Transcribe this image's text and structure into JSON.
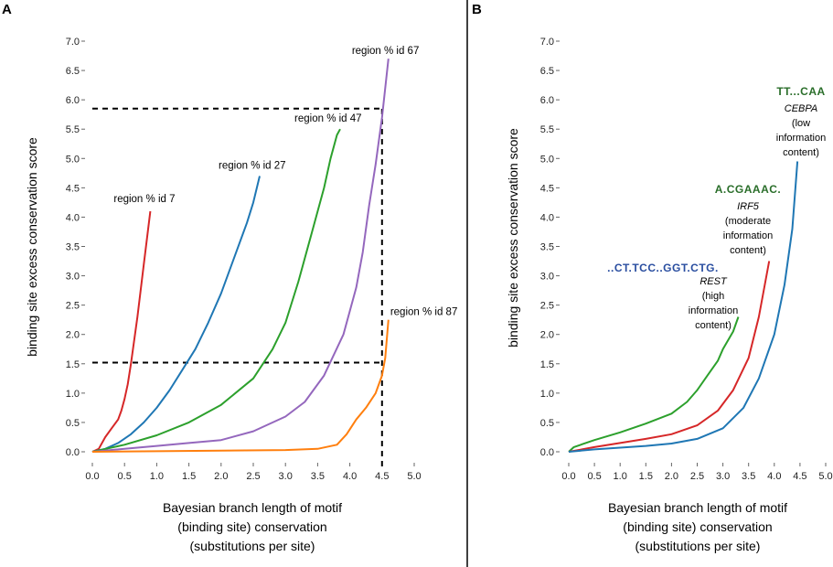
{
  "panels": [
    {
      "letter": "A",
      "ylabel": "binding site excess conservation score",
      "xlabel_lines": [
        "Bayesian branch length of motif",
        "(binding site) conservation",
        "(substitutions per site)"
      ],
      "xticks": [
        "0.0",
        "0.5",
        "1.0",
        "1.5",
        "2.0",
        "2.5",
        "3.0",
        "3.5",
        "4.0",
        "4.5",
        "5.0"
      ],
      "yticks": [
        "0.0",
        "0.5",
        "1.0",
        "1.5",
        "2.0",
        "2.5",
        "3.0",
        "3.5",
        "4.0",
        "4.5",
        "5.0",
        "5.5",
        "6.0",
        "6.5",
        "7.0"
      ]
    },
    {
      "letter": "B",
      "ylabel": "binding site excess conservation score",
      "xlabel_lines": [
        "Bayesian branch length of motif",
        "(binding site) conservation",
        "(substitutions per site)"
      ],
      "xticks": [
        "0.0",
        "0.5",
        "1.0",
        "1.5",
        "2.0",
        "2.5",
        "3.0",
        "3.5",
        "4.0",
        "4.5",
        "5.0"
      ],
      "yticks": [
        "0.0",
        "0.5",
        "1.0",
        "1.5",
        "2.0",
        "2.5",
        "3.0",
        "3.5",
        "4.0",
        "4.5",
        "5.0",
        "5.5",
        "6.0",
        "6.5",
        "7.0"
      ]
    }
  ],
  "motifs": [
    {
      "key": "CEBPA",
      "logo": "TT...CAA",
      "name": "CEBPA",
      "desc": [
        "(low",
        "information",
        "content)"
      ]
    },
    {
      "key": "IRF5",
      "logo": "A.CGAAAC.",
      "name": "IRF5",
      "desc": [
        "(moderate",
        "information",
        "content)"
      ]
    },
    {
      "key": "REST",
      "logo": "..CT.TCC..GGT.CTG.",
      "name": "REST",
      "desc": [
        "(high",
        "information",
        "content)"
      ]
    }
  ],
  "chart_data": [
    {
      "type": "line",
      "panel": "A",
      "xlabel": "Bayesian branch length of motif (binding site) conservation (substitutions per site)",
      "ylabel": "binding site excess conservation score",
      "xlim": [
        0,
        5
      ],
      "ylim": [
        0,
        7
      ],
      "grid": false,
      "series": [
        {
          "name": "region % id 7",
          "color": "#d62728",
          "points": [
            [
              0,
              0
            ],
            [
              0.1,
              0.05
            ],
            [
              0.2,
              0.25
            ],
            [
              0.3,
              0.4
            ],
            [
              0.4,
              0.55
            ],
            [
              0.45,
              0.7
            ],
            [
              0.5,
              0.9
            ],
            [
              0.55,
              1.15
            ],
            [
              0.6,
              1.5
            ],
            [
              0.7,
              2.3
            ],
            [
              0.8,
              3.2
            ],
            [
              0.9,
              4.1
            ]
          ]
        },
        {
          "name": "region % id 27",
          "color": "#1f77b4",
          "points": [
            [
              0,
              0
            ],
            [
              0.2,
              0.05
            ],
            [
              0.4,
              0.15
            ],
            [
              0.6,
              0.3
            ],
            [
              0.8,
              0.5
            ],
            [
              1.0,
              0.75
            ],
            [
              1.2,
              1.05
            ],
            [
              1.4,
              1.4
            ],
            [
              1.6,
              1.75
            ],
            [
              1.8,
              2.2
            ],
            [
              2.0,
              2.7
            ],
            [
              2.2,
              3.3
            ],
            [
              2.4,
              3.9
            ],
            [
              2.5,
              4.25
            ],
            [
              2.6,
              4.7
            ]
          ]
        },
        {
          "name": "region % id 47",
          "color": "#2ca02c",
          "points": [
            [
              0,
              0
            ],
            [
              0.5,
              0.12
            ],
            [
              1.0,
              0.28
            ],
            [
              1.5,
              0.5
            ],
            [
              2.0,
              0.8
            ],
            [
              2.5,
              1.25
            ],
            [
              2.8,
              1.75
            ],
            [
              3.0,
              2.2
            ],
            [
              3.2,
              2.9
            ],
            [
              3.4,
              3.7
            ],
            [
              3.6,
              4.5
            ],
            [
              3.7,
              5.0
            ],
            [
              3.8,
              5.4
            ],
            [
              3.85,
              5.5
            ]
          ]
        },
        {
          "name": "region % id 67",
          "color": "#9467bd",
          "points": [
            [
              0,
              0
            ],
            [
              0.5,
              0.05
            ],
            [
              1.0,
              0.1
            ],
            [
              1.5,
              0.15
            ],
            [
              2.0,
              0.2
            ],
            [
              2.5,
              0.35
            ],
            [
              3.0,
              0.6
            ],
            [
              3.3,
              0.85
            ],
            [
              3.6,
              1.3
            ],
            [
              3.9,
              2.0
            ],
            [
              4.1,
              2.8
            ],
            [
              4.2,
              3.4
            ],
            [
              4.3,
              4.2
            ],
            [
              4.4,
              4.9
            ],
            [
              4.5,
              5.7
            ],
            [
              4.6,
              6.7
            ]
          ]
        },
        {
          "name": "region % id 87",
          "color": "#ff7f0e",
          "points": [
            [
              0,
              0
            ],
            [
              1.0,
              0.01
            ],
            [
              2.0,
              0.02
            ],
            [
              3.0,
              0.03
            ],
            [
              3.5,
              0.05
            ],
            [
              3.8,
              0.12
            ],
            [
              3.95,
              0.3
            ],
            [
              4.1,
              0.55
            ],
            [
              4.25,
              0.75
            ],
            [
              4.4,
              1.0
            ],
            [
              4.5,
              1.3
            ],
            [
              4.55,
              1.6
            ],
            [
              4.6,
              2.25
            ]
          ]
        }
      ],
      "reference_lines": [
        {
          "style": "dashed",
          "y": 5.85,
          "x_from": 0,
          "x_to": 4.5
        },
        {
          "style": "dashed",
          "y": 1.52,
          "x_from": 0,
          "x_to": 4.5
        },
        {
          "style": "dashed",
          "x": 4.5,
          "y_from": -0.25,
          "y_to": 5.85
        }
      ]
    },
    {
      "type": "line",
      "panel": "B",
      "xlabel": "Bayesian branch length of motif (binding site) conservation (substitutions per site)",
      "ylabel": "binding site excess conservation score",
      "xlim": [
        0,
        5
      ],
      "ylim": [
        0,
        7
      ],
      "grid": false,
      "series": [
        {
          "name": "REST",
          "color": "#2ca02c",
          "points": [
            [
              0,
              0
            ],
            [
              0.1,
              0.08
            ],
            [
              0.5,
              0.2
            ],
            [
              1.0,
              0.33
            ],
            [
              1.5,
              0.48
            ],
            [
              2.0,
              0.65
            ],
            [
              2.3,
              0.85
            ],
            [
              2.5,
              1.05
            ],
            [
              2.7,
              1.3
            ],
            [
              2.9,
              1.55
            ],
            [
              3.0,
              1.75
            ],
            [
              3.1,
              1.9
            ],
            [
              3.2,
              2.05
            ],
            [
              3.3,
              2.3
            ]
          ]
        },
        {
          "name": "IRF5",
          "color": "#d62728",
          "points": [
            [
              0,
              0
            ],
            [
              0.5,
              0.08
            ],
            [
              1.0,
              0.15
            ],
            [
              1.5,
              0.22
            ],
            [
              2.0,
              0.3
            ],
            [
              2.5,
              0.45
            ],
            [
              2.9,
              0.7
            ],
            [
              3.2,
              1.05
            ],
            [
              3.5,
              1.6
            ],
            [
              3.7,
              2.3
            ],
            [
              3.9,
              3.25
            ]
          ]
        },
        {
          "name": "CEBPA",
          "color": "#1f77b4",
          "points": [
            [
              0,
              0
            ],
            [
              0.5,
              0.04
            ],
            [
              1.0,
              0.07
            ],
            [
              1.5,
              0.1
            ],
            [
              2.0,
              0.14
            ],
            [
              2.5,
              0.22
            ],
            [
              3.0,
              0.4
            ],
            [
              3.4,
              0.75
            ],
            [
              3.7,
              1.25
            ],
            [
              4.0,
              2.0
            ],
            [
              4.2,
              2.85
            ],
            [
              4.35,
              3.8
            ],
            [
              4.45,
              4.95
            ]
          ]
        }
      ]
    }
  ]
}
